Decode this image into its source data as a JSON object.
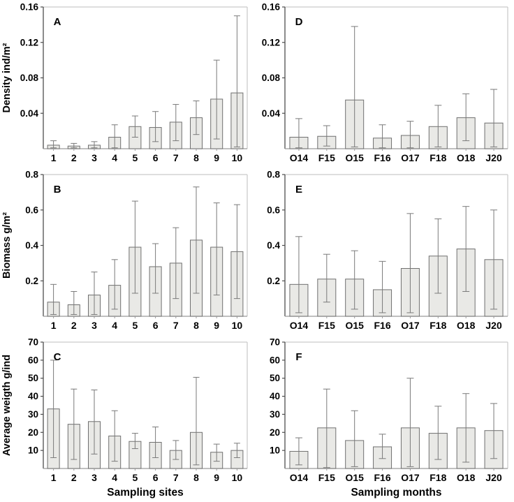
{
  "figure": {
    "description_letters": [
      "A",
      "B",
      "C",
      "D",
      "E",
      "F"
    ],
    "xlabel_sites": "Sampling sites",
    "xlabel_months": "Sampling months"
  },
  "colors": {
    "background": "#ffffff",
    "bar_fill": "#e9e9e6",
    "bar_stroke": "#6f6f6f",
    "error_stroke": "#7a7a7a",
    "axis_left": "#4d4d4d",
    "axis_bottom": "#9a9a9a",
    "frame_light": "#c9c9c9",
    "text": "#000000"
  },
  "chart_data": [
    {
      "panel": "A",
      "type": "bar",
      "ylabel": "Density ind/m²",
      "xlabel": "",
      "categories": [
        "1",
        "2",
        "3",
        "4",
        "5",
        "6",
        "7",
        "8",
        "9",
        "10"
      ],
      "values": [
        0.004,
        0.003,
        0.004,
        0.013,
        0.025,
        0.024,
        0.03,
        0.035,
        0.056,
        0.063
      ],
      "err_low": [
        0.001,
        0.001,
        0.001,
        0.001,
        0.013,
        0.008,
        0.009,
        0.016,
        0.011,
        0.002
      ],
      "err_high": [
        0.009,
        0.006,
        0.008,
        0.027,
        0.037,
        0.042,
        0.05,
        0.054,
        0.1,
        0.15
      ],
      "ylim": [
        0,
        0.16
      ],
      "yticks": [
        0.04,
        0.08,
        0.12,
        0.16
      ],
      "ytick_labels": [
        "0.04",
        "0.08",
        "0.12",
        "0.16"
      ]
    },
    {
      "panel": "D",
      "type": "bar",
      "ylabel": "",
      "xlabel": "",
      "categories": [
        "O14",
        "F15",
        "O15",
        "F16",
        "O17",
        "F18",
        "O18",
        "J20"
      ],
      "values": [
        0.013,
        0.014,
        0.055,
        0.012,
        0.015,
        0.025,
        0.035,
        0.029
      ],
      "err_low": [
        0.001,
        0.003,
        0.002,
        0.001,
        0.001,
        0.002,
        0.009,
        0.002
      ],
      "err_high": [
        0.034,
        0.026,
        0.138,
        0.027,
        0.031,
        0.049,
        0.062,
        0.067
      ],
      "ylim": [
        0,
        0.16
      ],
      "yticks": [
        0.04,
        0.08,
        0.12,
        0.16
      ],
      "ytick_labels": [
        "0.04",
        "0.08",
        "0.12",
        "0.16"
      ]
    },
    {
      "panel": "B",
      "type": "bar",
      "ylabel": "Biomass g/m²",
      "xlabel": "",
      "categories": [
        "1",
        "2",
        "3",
        "4",
        "5",
        "6",
        "7",
        "8",
        "9",
        "10"
      ],
      "values": [
        0.08,
        0.065,
        0.12,
        0.175,
        0.39,
        0.28,
        0.3,
        0.43,
        0.39,
        0.365
      ],
      "err_low": [
        0.01,
        0.01,
        0.01,
        0.04,
        0.13,
        0.13,
        0.1,
        0.13,
        0.12,
        0.1
      ],
      "err_high": [
        0.18,
        0.14,
        0.25,
        0.32,
        0.65,
        0.41,
        0.5,
        0.73,
        0.64,
        0.63
      ],
      "ylim": [
        0,
        0.8
      ],
      "yticks": [
        0.2,
        0.4,
        0.6,
        0.8
      ],
      "ytick_labels": [
        "0.2",
        "0.4",
        "0.6",
        "0.8"
      ]
    },
    {
      "panel": "E",
      "type": "bar",
      "ylabel": "",
      "xlabel": "",
      "categories": [
        "O14",
        "F15",
        "O15",
        "F16",
        "O17",
        "F18",
        "O18",
        "J20"
      ],
      "values": [
        0.18,
        0.21,
        0.21,
        0.15,
        0.27,
        0.34,
        0.38,
        0.32
      ],
      "err_low": [
        0.02,
        0.08,
        0.04,
        0.02,
        0.02,
        0.13,
        0.14,
        0.04
      ],
      "err_high": [
        0.45,
        0.35,
        0.37,
        0.31,
        0.58,
        0.55,
        0.62,
        0.6
      ],
      "ylim": [
        0,
        0.8
      ],
      "yticks": [
        0.2,
        0.4,
        0.6,
        0.8
      ],
      "ytick_labels": [
        "0.2",
        "0.4",
        "0.6",
        "0.8"
      ]
    },
    {
      "panel": "C",
      "type": "bar",
      "ylabel": "Average weigth g/ind",
      "xlabel": "Sampling sites",
      "categories": [
        "1",
        "2",
        "3",
        "4",
        "5",
        "6",
        "7",
        "8",
        "9",
        "10"
      ],
      "values": [
        33,
        24.5,
        26,
        18,
        15,
        14.5,
        10,
        20,
        9,
        10
      ],
      "err_low": [
        6,
        5,
        8,
        4,
        11,
        6,
        5,
        2,
        4,
        6
      ],
      "err_high": [
        60,
        44,
        43.5,
        32,
        19.5,
        23,
        15.5,
        50.5,
        13.5,
        14
      ],
      "ylim": [
        0,
        70
      ],
      "yticks": [
        10,
        20,
        30,
        40,
        50,
        60,
        70
      ],
      "ytick_labels": [
        "10",
        "20",
        "30",
        "40",
        "50",
        "60",
        "70"
      ]
    },
    {
      "panel": "F",
      "type": "bar",
      "ylabel": "",
      "xlabel": "Sampling months",
      "categories": [
        "O14",
        "F15",
        "O15",
        "F16",
        "O17",
        "F18",
        "O18",
        "J20"
      ],
      "values": [
        9.5,
        22.5,
        15.5,
        12,
        22.5,
        19.5,
        22.5,
        21
      ],
      "err_low": [
        2,
        0.5,
        1,
        5.5,
        1,
        5,
        3.5,
        5.5
      ],
      "err_high": [
        17,
        44,
        32,
        19,
        50,
        34.5,
        41.5,
        36
      ],
      "ylim": [
        0,
        70
      ],
      "yticks": [
        10,
        20,
        30,
        40,
        50,
        60,
        70
      ],
      "ytick_labels": [
        "10",
        "20",
        "30",
        "40",
        "50",
        "60",
        "70"
      ]
    }
  ]
}
